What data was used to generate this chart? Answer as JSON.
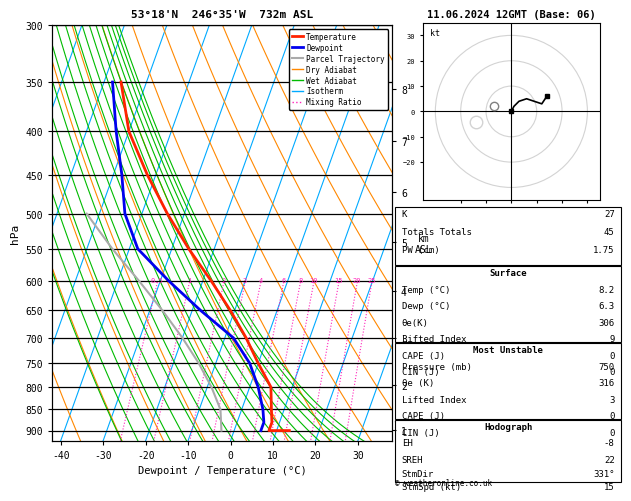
{
  "title_left": "53°18'N  246°35'W  732m ASL",
  "title_right": "11.06.2024 12GMT (Base: 06)",
  "xlabel": "Dewpoint / Temperature (°C)",
  "ylabel_left": "hPa",
  "pressure_levels": [
    300,
    350,
    400,
    450,
    500,
    550,
    600,
    650,
    700,
    750,
    800,
    850,
    900
  ],
  "pressure_min": 300,
  "pressure_max": 925,
  "temp_min": -42,
  "temp_max": 38,
  "skew_amount": 35.0,
  "isotherm_color": "#00aaff",
  "dry_adiabat_color": "#ff8800",
  "wet_adiabat_color": "#00bb00",
  "mixing_ratio_color": "#ff22bb",
  "temp_color": "#ff2200",
  "dewpoint_color": "#0000ee",
  "parcel_color": "#aaaaaa",
  "km_labels": [
    1,
    2,
    3,
    4,
    5,
    6,
    7,
    8
  ],
  "km_pressures": [
    898,
    795,
    701,
    616,
    540,
    472,
    411,
    357
  ],
  "temp_T": [
    -56.0,
    -50.0,
    -42.0,
    -34.0,
    -26.0,
    -18.0,
    -11.0,
    -5.0,
    0.0,
    5.0,
    7.0,
    8.2,
    8.2,
    13.0
  ],
  "temp_P": [
    350,
    400,
    450,
    500,
    550,
    600,
    650,
    700,
    750,
    800,
    850,
    880,
    900,
    900
  ],
  "dewp_T": [
    -58.0,
    -53.0,
    -48.0,
    -44.0,
    -38.0,
    -28.0,
    -18.0,
    -8.0,
    -2.0,
    2.0,
    5.0,
    6.3,
    6.3
  ],
  "dewp_P": [
    350,
    400,
    450,
    500,
    550,
    600,
    650,
    700,
    750,
    800,
    850,
    880,
    900
  ],
  "parcel_T": [
    -3.0,
    -5.0,
    -9.0,
    -14.0,
    -20.0,
    -27.0,
    -35.0,
    -44.0,
    -53.0
  ],
  "parcel_P": [
    900,
    850,
    800,
    750,
    700,
    650,
    600,
    550,
    500
  ],
  "mixing_ratio_values": [
    0.5,
    1.0,
    2.0,
    3.0,
    4.0,
    6.0,
    8.0,
    10.0,
    15.0,
    20.0,
    25.0
  ],
  "stats": {
    "K": 27,
    "Totals_Totals": 45,
    "PW_cm": 1.75,
    "Surface_Temp": 8.2,
    "Surface_Dewp": 6.3,
    "Surface_theta_e": 306,
    "Surface_LI": 9,
    "Surface_CAPE": 0,
    "Surface_CIN": 0,
    "MU_Pressure": 750,
    "MU_theta_e": 316,
    "MU_LI": 3,
    "MU_CAPE": 0,
    "MU_CIN": 0,
    "Hodo_EH": -8,
    "Hodo_SREH": 22,
    "Hodo_StmDir": 331,
    "Hodo_StmSpd": 15
  },
  "legend_items": [
    {
      "label": "Temperature",
      "color": "#ff2200",
      "lw": 2.0,
      "ls": "-"
    },
    {
      "label": "Dewpoint",
      "color": "#0000ee",
      "lw": 2.0,
      "ls": "-"
    },
    {
      "label": "Parcel Trajectory",
      "color": "#aaaaaa",
      "lw": 1.5,
      "ls": "-"
    },
    {
      "label": "Dry Adiabat",
      "color": "#ff8800",
      "lw": 1.0,
      "ls": "-"
    },
    {
      "label": "Wet Adiabat",
      "color": "#00bb00",
      "lw": 1.0,
      "ls": "-"
    },
    {
      "label": "Isotherm",
      "color": "#00aaff",
      "lw": 1.0,
      "ls": "-"
    },
    {
      "label": "Mixing Ratio",
      "color": "#ff22bb",
      "lw": 1.0,
      "ls": ":"
    }
  ]
}
